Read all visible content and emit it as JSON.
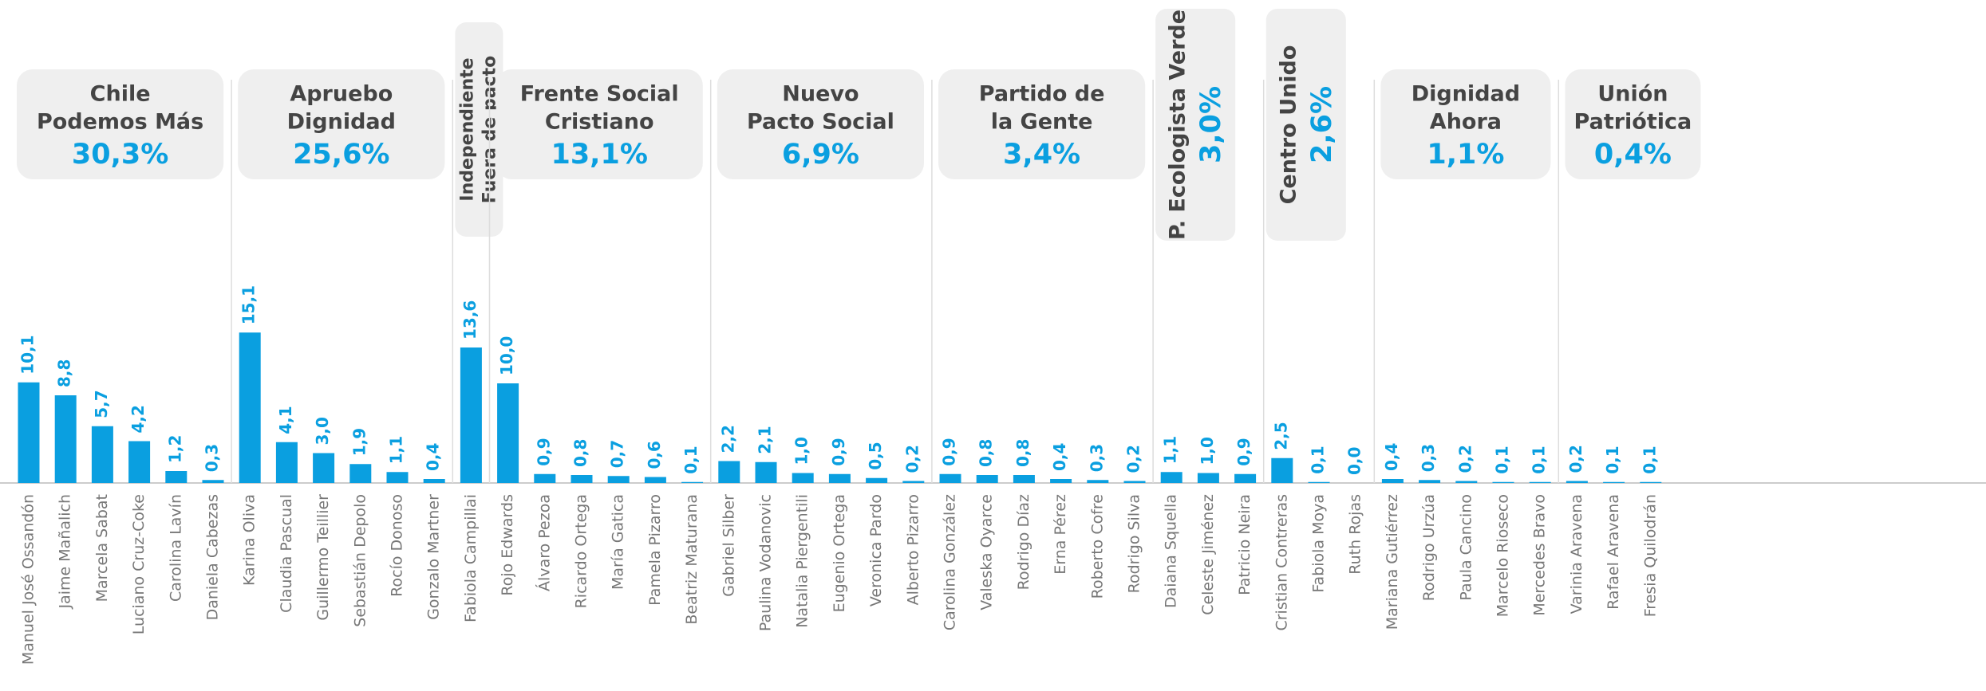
{
  "chart_data": {
    "type": "bar",
    "color": "#0a9fe0",
    "ylim": [
      0,
      16
    ],
    "groups": [
      {
        "label": [
          "Chile",
          "Podemos Más"
        ],
        "share": "30,3%",
        "categories": [
          "Manuel José Ossandón",
          "Jaime Mañalich",
          "Marcela Sabat",
          "Luciano Cruz-Coke",
          "Carolina Lavín",
          "Daniela Cabezas"
        ],
        "values": [
          10.1,
          8.8,
          5.7,
          4.2,
          1.2,
          0.3
        ],
        "value_labels": [
          "10,1",
          "8,8",
          "5,7",
          "4,2",
          "1,2",
          "0,3"
        ]
      },
      {
        "label": [
          "Apruebo",
          "Dignidad"
        ],
        "share": "25,6%",
        "categories": [
          "Karina Oliva",
          "Claudia Pascual",
          "Guillermo Teillier",
          "Sebastián Depolo",
          "Rocío Donoso",
          "Gonzalo Martner"
        ],
        "values": [
          15.1,
          4.1,
          3.0,
          1.9,
          1.1,
          0.4
        ],
        "value_labels": [
          "15,1",
          "4,1",
          "3,0",
          "1,9",
          "1,1",
          "0,4"
        ]
      },
      {
        "label": [
          "Independiente",
          "Fuera de pacto"
        ],
        "vertical_label": true,
        "categories": [
          "Fabiola Campillai"
        ],
        "values": [
          13.6
        ],
        "value_labels": [
          "13,6"
        ]
      },
      {
        "label": [
          "Frente Social",
          "Cristiano"
        ],
        "share": "13,1%",
        "categories": [
          "Rojo Edwards",
          "Álvaro Pezoa",
          "Ricardo Ortega",
          "María Gatica",
          "Pamela Pizarro",
          "Beatriz Maturana"
        ],
        "values": [
          10.0,
          0.9,
          0.8,
          0.7,
          0.6,
          0.1
        ],
        "value_labels": [
          "10,0",
          "0,9",
          "0,8",
          "0,7",
          "0,6",
          "0,1"
        ]
      },
      {
        "label": [
          "Nuevo",
          "Pacto Social"
        ],
        "share": "6,9%",
        "categories": [
          "Gabriel Silber",
          "Paulina Vodanovic",
          "Natalia Piergentili",
          "Eugenio Ortega",
          "Veronica Pardo",
          "Alberto Pizarro"
        ],
        "values": [
          2.2,
          2.1,
          1.0,
          0.9,
          0.5,
          0.2
        ],
        "value_labels": [
          "2,2",
          "2,1",
          "1,0",
          "0,9",
          "0,5",
          "0,2"
        ]
      },
      {
        "label": [
          "Partido de",
          "la Gente"
        ],
        "share": "3,4%",
        "categories": [
          "Carolina González",
          "Valeska Oyarce",
          "Rodrigo Díaz",
          "Erna Pérez",
          "Roberto Cofre",
          "Rodrigo Silva"
        ],
        "values": [
          0.9,
          0.8,
          0.8,
          0.4,
          0.3,
          0.2
        ],
        "value_labels": [
          "0,9",
          "0,8",
          "0,8",
          "0,4",
          "0,3",
          "0,2"
        ]
      },
      {
        "label": [
          "P. Ecologista Verde"
        ],
        "share": "3,0%",
        "vertical_label": true,
        "categories": [
          "Daiana Squella",
          "Celeste Jiménez",
          "Patricio Neira"
        ],
        "values": [
          1.1,
          1.0,
          0.9
        ],
        "value_labels": [
          "1,1",
          "1,0",
          "0,9"
        ]
      },
      {
        "label": [
          "Centro Unido"
        ],
        "share": "2,6%",
        "vertical_label": true,
        "categories": [
          "Cristian Contreras",
          "Fabiola Moya",
          "Ruth Rojas"
        ],
        "values": [
          2.5,
          0.1,
          0.0
        ],
        "value_labels": [
          "2,5",
          "0,1",
          "0,0"
        ]
      },
      {
        "label": [
          "Dignidad",
          "Ahora"
        ],
        "share": "1,1%",
        "categories": [
          "Mariana Gutiérrez",
          "Rodrigo Urzúa",
          "Paula Cancino",
          "Marcelo Rioseco",
          "Mercedes Bravo"
        ],
        "values": [
          0.4,
          0.3,
          0.2,
          0.1,
          0.1
        ],
        "value_labels": [
          "0,4",
          "0,3",
          "0,2",
          "0,1",
          "0,1"
        ]
      },
      {
        "label": [
          "Unión",
          "Patriótica"
        ],
        "share": "0,4%",
        "categories": [
          "Varinia Aravena",
          "Rafael Aravena",
          "Fresia Quilodrán"
        ],
        "values": [
          0.2,
          0.1,
          0.1
        ],
        "value_labels": [
          "0,2",
          "0,1",
          "0,1"
        ]
      }
    ]
  }
}
